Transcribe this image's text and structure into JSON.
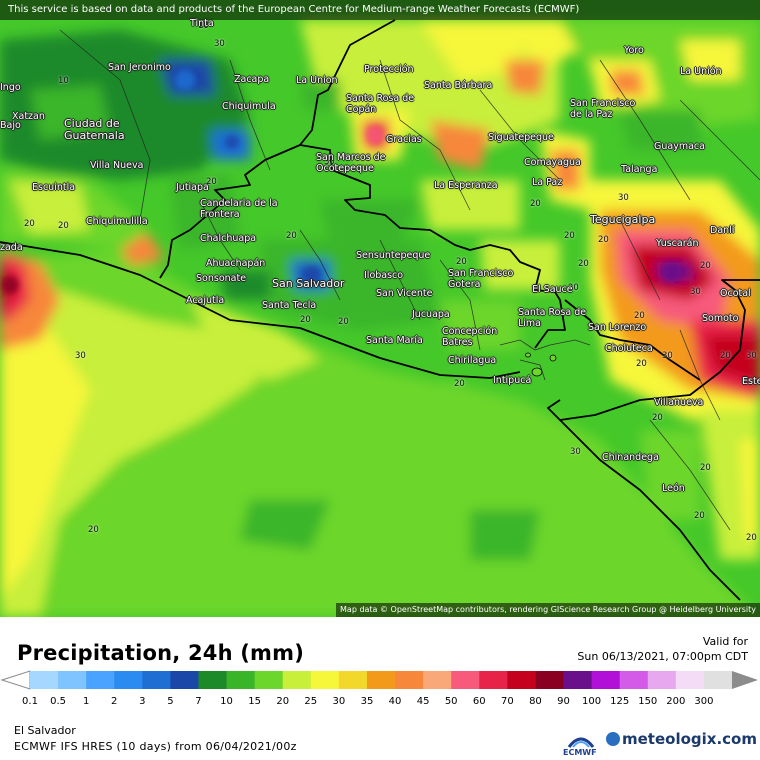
{
  "notice": "This service is based on data and products of the European Centre for Medium-range Weather Forecasts (ECMWF)",
  "attribution": "Map data © OpenStreetMap contributors, rendering GIScience Research Group @ Heidelberg University",
  "title": "Precipitation, 24h (mm)",
  "valid_label": "Valid for",
  "valid_time": "Sun 06/13/2021, 07:00pm CDT",
  "region": "El Salvador",
  "model_run": "ECMWF IFS HRES (10 days) from 06/04/2021/00z",
  "ecmwf_label": "ECMWF",
  "brand": "meteologix.com",
  "legend": {
    "ticks": [
      "0.1",
      "0.5",
      "1",
      "2",
      "3",
      "5",
      "7",
      "10",
      "15",
      "20",
      "25",
      "30",
      "35",
      "40",
      "45",
      "50",
      "60",
      "70",
      "80",
      "90",
      "100",
      "125",
      "150",
      "200",
      "300"
    ],
    "colors": [
      "#a6d8ff",
      "#80c4ff",
      "#4aa4ff",
      "#2a8cf0",
      "#1f6ed4",
      "#1a47a8",
      "#1d8a2a",
      "#3ab52a",
      "#6cd62a",
      "#c8ef3a",
      "#f6f63a",
      "#f1d82a",
      "#f39a1a",
      "#f7873a",
      "#f9a87a",
      "#f75a7a",
      "#e8234a",
      "#c4001e",
      "#8a0020",
      "#6a108a",
      "#b010d8",
      "#d45ae8",
      "#e8a8f0",
      "#f4dcf6",
      "#e0e0e0"
    ]
  },
  "cities": [
    {
      "name": "San Jeronimo"
    },
    {
      "name": "Zacapa"
    },
    {
      "name": "La Union"
    },
    {
      "name": "Protección"
    },
    {
      "name": "Santa Bárbara"
    },
    {
      "name": "Yoro"
    },
    {
      "name": "La Unión"
    },
    {
      "name": "Chiquimula"
    },
    {
      "name": "Santa Rosa de Copán"
    },
    {
      "name": "San Francisco de la Paz"
    },
    {
      "name": "Ciudad de Guatemala"
    },
    {
      "name": "Gracias"
    },
    {
      "name": "Siguatepeque"
    },
    {
      "name": "Guaymaca"
    },
    {
      "name": "Villa Nueva"
    },
    {
      "name": "San Marcos de Ocotepeque"
    },
    {
      "name": "Comayagua"
    },
    {
      "name": "Talanga"
    },
    {
      "name": "Escuintla"
    },
    {
      "name": "Jutiapa"
    },
    {
      "name": "La Esperanza"
    },
    {
      "name": "La Paz"
    },
    {
      "name": "Candelaria de la Frontera"
    },
    {
      "name": "Chiquimulilla"
    },
    {
      "name": "Tegucigalpa"
    },
    {
      "name": "Danlí"
    },
    {
      "name": "Chalchuapa"
    },
    {
      "name": "Yuscarán"
    },
    {
      "name": "Sensuntepeque"
    },
    {
      "name": "Ahuachapán"
    },
    {
      "name": "Ilobasco"
    },
    {
      "name": "San Francisco Gotera"
    },
    {
      "name": "Sonsonate"
    },
    {
      "name": "San Salvador"
    },
    {
      "name": "El Sauce"
    },
    {
      "name": "Ocotal"
    },
    {
      "name": "Acajutla"
    },
    {
      "name": "San Vicente"
    },
    {
      "name": "Santa Tecla"
    },
    {
      "name": "Santa Rosa de Lima"
    },
    {
      "name": "Somoto"
    },
    {
      "name": "Jucuapa"
    },
    {
      "name": "San Lorenzo"
    },
    {
      "name": "Concepción Batres"
    },
    {
      "name": "Choluteca"
    },
    {
      "name": "Santa María"
    },
    {
      "name": "Chirilagua"
    },
    {
      "name": "Intipucá"
    },
    {
      "name": "Villanueva"
    },
    {
      "name": "Chinandega"
    },
    {
      "name": "León"
    },
    {
      "name": "Bajo"
    },
    {
      "name": "Xatzan"
    },
    {
      "name": "Tinta"
    },
    {
      "name": "Ingo"
    },
    {
      "name": "Esteli"
    },
    {
      "name": "zada"
    }
  ],
  "contour_labels": [
    "10",
    "30",
    "30",
    "20",
    "20",
    "20",
    "20",
    "30",
    "10",
    "20",
    "20",
    "20",
    "20",
    "20",
    "20",
    "20",
    "30",
    "20",
    "30",
    "30",
    "30",
    "20",
    "20",
    "20",
    "20",
    "20",
    "20",
    "30",
    "20",
    "20",
    "20",
    "20"
  ]
}
